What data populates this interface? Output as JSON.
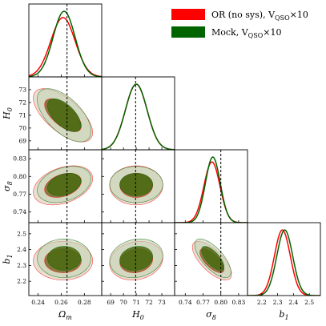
{
  "chart_data": {
    "type": "corner-triangle",
    "parameters": [
      {
        "key": "omega_m",
        "label_main": "Ω",
        "label_sub": "m",
        "ticks": [
          0.24,
          0.26,
          0.28
        ],
        "range": [
          0.232,
          0.295
        ],
        "truth": 0.265
      },
      {
        "key": "H0",
        "label_main": "H",
        "label_sub": "0",
        "ticks": [
          69,
          70,
          71,
          72,
          73
        ],
        "range": [
          68.3,
          74.0
        ],
        "truth": 70.95
      },
      {
        "key": "sigma8",
        "label_main": "σ",
        "label_sub": "8",
        "ticks": [
          0.74,
          0.77,
          0.8,
          0.83
        ],
        "range": [
          0.722,
          0.845
        ],
        "truth": 0.8
      },
      {
        "key": "b1",
        "label_main": "b",
        "label_sub": "1",
        "ticks": [
          2.2,
          2.3,
          2.4,
          2.5
        ],
        "range": [
          2.11,
          2.57
        ],
        "truth": null
      }
    ],
    "series": [
      {
        "name": "OR (no sys), V",
        "name_sub": "QSO",
        "name_suffix": "×10",
        "color": "#ff0000",
        "inner_fill": "#7a6a2a",
        "outer_fill": "#d9c9b5",
        "means": [
          0.2615,
          71.0,
          0.785,
          2.33
        ],
        "sigmas": [
          0.0105,
          0.85,
          0.0135,
          0.05
        ],
        "correlations": {
          "0-1": -0.65,
          "0-2": 0.35,
          "1-2": 0.0,
          "0-3": 0.0,
          "1-3": 0.15,
          "2-3": -0.7
        }
      },
      {
        "name": "Mock, V",
        "name_sub": "QSO",
        "name_suffix": "×10",
        "color": "#006400",
        "inner_fill": "#4a6a10",
        "outer_fill": "#c5d4b5",
        "means": [
          0.2625,
          71.0,
          0.7865,
          2.345
        ],
        "sigmas": [
          0.0095,
          0.85,
          0.0125,
          0.05
        ],
        "correlations": {
          "0-1": -0.6,
          "0-2": 0.32,
          "1-2": 0.0,
          "0-3": 0.0,
          "1-3": 0.15,
          "2-3": -0.7
        }
      }
    ],
    "title": "",
    "legend_position": "top-right",
    "grid": false
  }
}
